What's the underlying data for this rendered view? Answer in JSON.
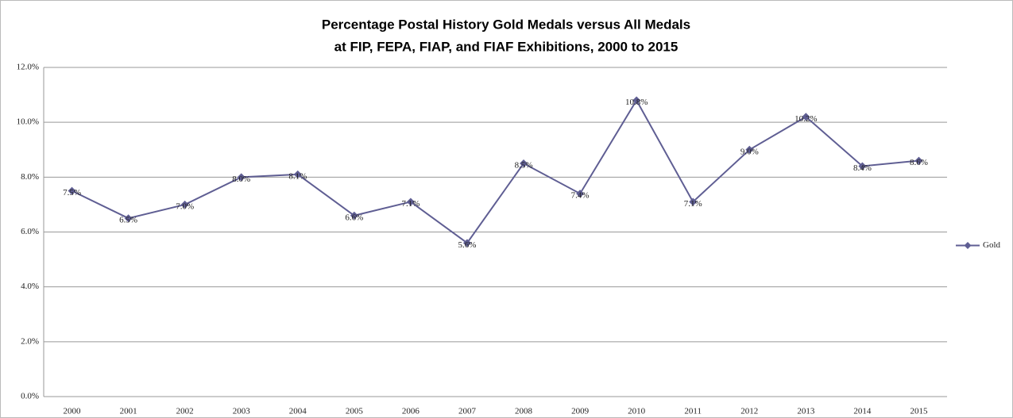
{
  "chart_data": {
    "type": "line",
    "title": "Percentage Postal History Gold Medals versus All Medals",
    "subtitle": "at FIP, FEPA, FIAP, and FIAF Exhibitions, 2000 to 2015",
    "categories": [
      "2000",
      "2001",
      "2002",
      "2003",
      "2004",
      "2005",
      "2006",
      "2007",
      "2008",
      "2009",
      "2010",
      "2011",
      "2012",
      "2013",
      "2014",
      "2015"
    ],
    "series": [
      {
        "name": "Gold",
        "color": "#5f5e93",
        "values": [
          7.5,
          6.5,
          7.0,
          8.0,
          8.1,
          6.6,
          7.1,
          5.6,
          8.5,
          7.4,
          10.8,
          7.1,
          9.0,
          10.2,
          8.4,
          8.6
        ],
        "value_labels": [
          "7.5%",
          "6.5%",
          "7.0%",
          "8.0%",
          "8.1%",
          "6.6%",
          "7.1%",
          "5.6%",
          "8.5%",
          "7.4%",
          "10.8%",
          "7.1%",
          "9.0%",
          "10.2%",
          "8.4%",
          "8.6%"
        ]
      }
    ],
    "ylim": [
      0,
      12
    ],
    "yticks": [
      {
        "value": 0,
        "label": "0.0%"
      },
      {
        "value": 2,
        "label": "2.0%"
      },
      {
        "value": 4,
        "label": "4.0%"
      },
      {
        "value": 6,
        "label": "6.0%"
      },
      {
        "value": 8,
        "label": "8.0%"
      },
      {
        "value": 10,
        "label": "10.0%"
      },
      {
        "value": 12,
        "label": "12.0%"
      }
    ],
    "grid": true,
    "legend": "right"
  }
}
